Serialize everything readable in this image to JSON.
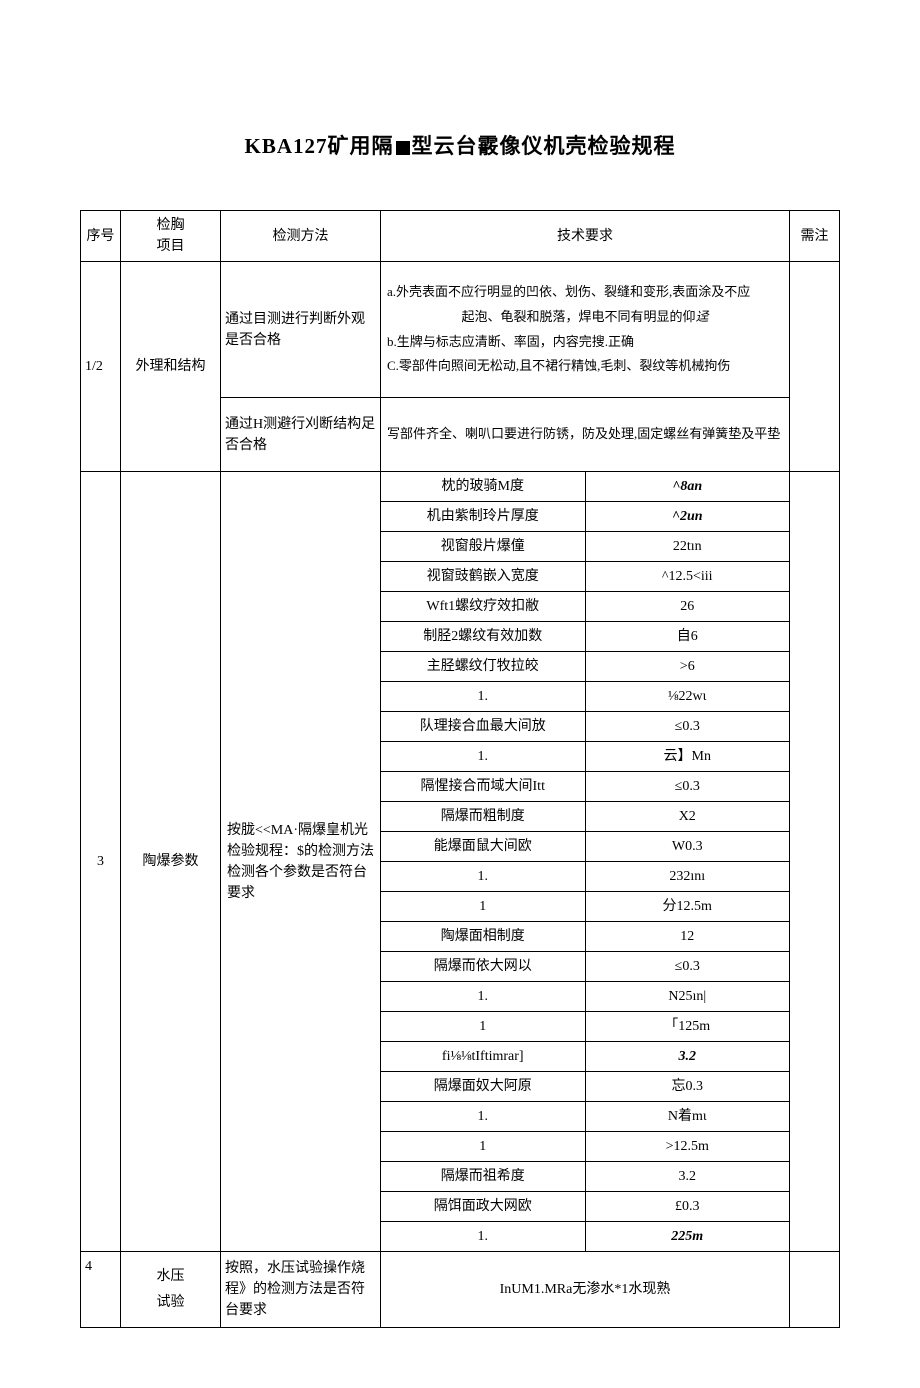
{
  "title_pre": "KBA127矿用隔",
  "title_post": "型云台霰像仪机壳检验规程",
  "header": {
    "seq": "序号",
    "item_l1": "检胸",
    "item_l2": "项目",
    "method": "检测方法",
    "req": "技术要求",
    "note": "需注"
  },
  "r12": {
    "seq": "1/2",
    "item": "外理和结构",
    "method1": "通过目测进行判断外观是否合格",
    "method2": "通过H测避行刈断结构足否合格",
    "req_a": "a.外壳表面不应行明显的凹依、划伤、裂缝和变形,表面涂及不应",
    "req_a2": "起泡、龟裂和脱落，焊电不同有明显的仰",
    "req_b": "b.生牌与标志应清断、率固，内容完搜.正确",
    "req_c": "C.零部件向照间无松动,且不裙行精蚀,毛刺、裂纹等机械拘伤",
    "req2": "写部件齐全、喇叭口要进行防锈，防及处理,固定螺丝有弹簧垫及平垫"
  },
  "r3": {
    "seq": "3",
    "item": "陶爆参数",
    "method": "按胧<<MA·隔爆皇机光检验规程：$的检测方法检测各个参数是否符台要求",
    "rows": [
      {
        "p": "枕的玻骑M度",
        "v": "^8an",
        "vs": "bolditalic"
      },
      {
        "p": "机由紫制玲片厚度",
        "v": "^2un",
        "vs": "bolditalic"
      },
      {
        "p": "视窗般片爆僮",
        "v": "22tın"
      },
      {
        "p": "视窗豉鹤嵌入宽度",
        "v": "^12.5<iii"
      },
      {
        "p": "Wft1螺纹疗效扣敝",
        "v": "26"
      },
      {
        "p": "制胫2螺纹有效加数",
        "v": "自6"
      },
      {
        "p": "主胫螺纹仃牧拉皎",
        "v": ">6"
      },
      {
        "p": "1.",
        "v": "⅛22wι"
      },
      {
        "p": "队理接合血最大间放",
        "v": "≤0.3"
      },
      {
        "p": "1.",
        "v": "云】Mn"
      },
      {
        "p": "隔惺接合而域大间Itt",
        "v": "≤0.3"
      },
      {
        "p": "隔爆而粗制度",
        "v": "X2"
      },
      {
        "p": "能爆面鼠大间欧",
        "v": "W0.3"
      },
      {
        "p": "1.",
        "v": "232ını"
      },
      {
        "p": "1",
        "v": "分12.5m"
      },
      {
        "p": "陶爆面相制度",
        "v": "12"
      },
      {
        "p": "隔爆而依大网以",
        "v": "≤0.3"
      },
      {
        "p": "1.",
        "v": "N25ın|"
      },
      {
        "p": "1",
        "v": "「125m"
      },
      {
        "p": "fi⅛⅛tIftimrar]",
        "v": "3.2",
        "vs": "bolditalic"
      },
      {
        "p": "隔爆面奴大阿原",
        "v": "忘0.3"
      },
      {
        "p": "1.",
        "v": "N着mι"
      },
      {
        "p": "1",
        "v": ">12.5m"
      },
      {
        "p": "隔爆而祖希度",
        "v": "3.2"
      },
      {
        "p": "隔饵面政大网欧",
        "v": "£0.3"
      },
      {
        "p": "1.",
        "v": "225m",
        "vs": "bolditalic"
      }
    ]
  },
  "r4": {
    "seq": "4",
    "item_l1": "水压",
    "item_l2": "试验",
    "method": "按照，水压试验操作烧程》的检测方法是否符台要求",
    "req": "InUM1.MRa无渗水*1水现熟"
  }
}
